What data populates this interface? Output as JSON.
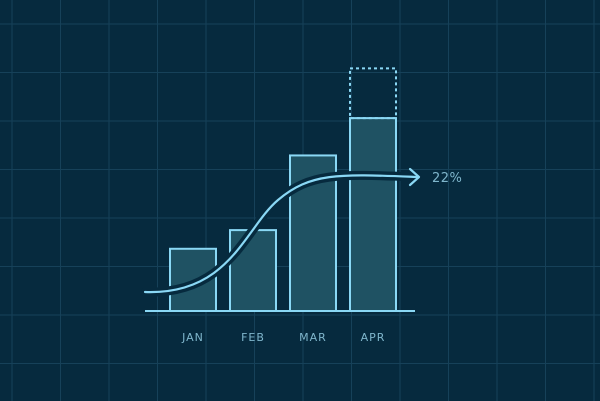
{
  "chart_data": {
    "type": "bar",
    "categories": [
      "JAN",
      "FEB",
      "MAR",
      "APR"
    ],
    "values": [
      40,
      52,
      100,
      124
    ],
    "projected": {
      "category": "APR",
      "value": 156
    },
    "ylim": [
      0,
      180
    ],
    "grid": true,
    "trend": {
      "type": "s-curve",
      "label": "22%"
    },
    "colors": {
      "background": "#062a3e",
      "grid": "#164159",
      "outline": "#8ad8f5",
      "bar_fill": "#1f5263",
      "text": "#7fb6cc"
    }
  }
}
